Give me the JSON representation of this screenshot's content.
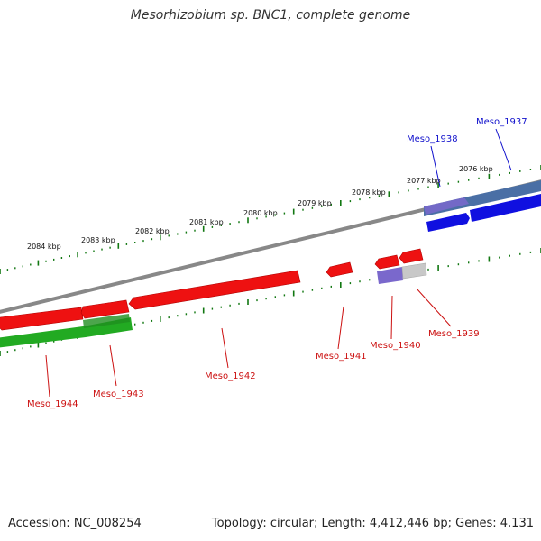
{
  "title": "Mesorhizobium sp. BNC1, complete genome",
  "accession_text": "Accession: NC_008254",
  "summary_text": "Topology: circular; Length: 4,412,446 bp; Genes: 4,131",
  "colors": {
    "forward_cds": "#1010e0",
    "forward_track": "#4a6fa5",
    "reverse_cds": "#ee1111",
    "reverse_rna": "#22aa22",
    "other_feature": "#7a68cc",
    "backbone": "#888888",
    "tick": "#117711",
    "label_forward": "#1010cc",
    "label_reverse": "#cc1111"
  },
  "scale": {
    "unit": "kbp",
    "tick_labels": [
      "2084 kbp",
      "2083 kbp",
      "2082 kbp",
      "2081 kbp",
      "2080 kbp",
      "2079 kbp",
      "2078 kbp",
      "2077 kbp",
      "2076 kbp"
    ]
  },
  "genes": [
    {
      "label": "Meso_1937",
      "strand": "forward"
    },
    {
      "label": "Meso_1938",
      "strand": "forward"
    },
    {
      "label": "Meso_1939",
      "strand": "reverse"
    },
    {
      "label": "Meso_1940",
      "strand": "reverse"
    },
    {
      "label": "Meso_1941",
      "strand": "reverse"
    },
    {
      "label": "Meso_1942",
      "strand": "reverse"
    },
    {
      "label": "Meso_1943",
      "strand": "reverse"
    },
    {
      "label": "Meso_1944",
      "strand": "reverse"
    }
  ]
}
